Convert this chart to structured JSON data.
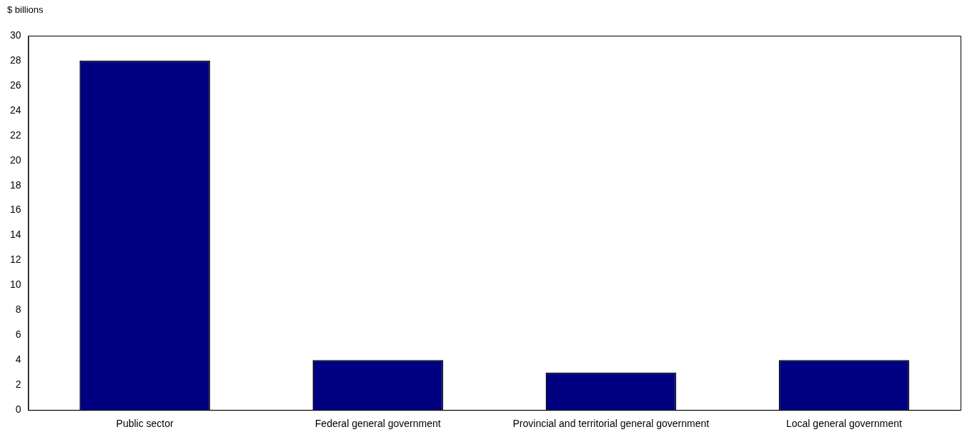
{
  "chart_data": {
    "type": "bar",
    "ylabel": "$ billions",
    "categories": [
      "Public sector",
      "Federal general government",
      "Provincial and territorial general government",
      "Local general government"
    ],
    "values": [
      28,
      4,
      3,
      4
    ],
    "color": "#000080",
    "ylim": [
      0,
      30
    ],
    "yticks": [
      0,
      2,
      4,
      6,
      8,
      10,
      12,
      14,
      16,
      18,
      20,
      22,
      24,
      26,
      28,
      30
    ],
    "grid": false,
    "legend": false
  }
}
